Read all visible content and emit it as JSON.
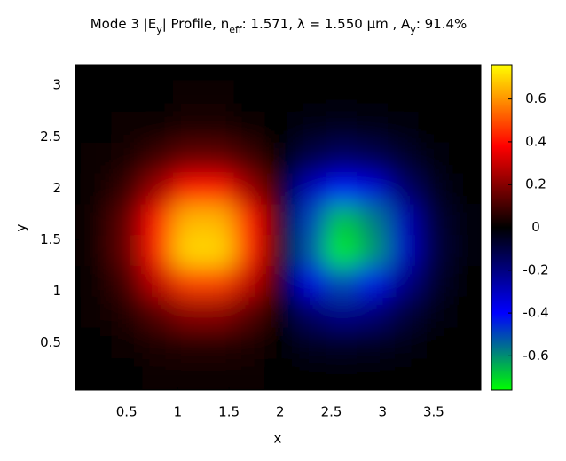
{
  "chart_data": {
    "type": "heatmap",
    "title": [
      {
        "text": "Mode 3 |E"
      },
      {
        "text": "y",
        "sub": true
      },
      {
        "text": "| Profile, n"
      },
      {
        "text": "eff",
        "sub": true
      },
      {
        "text": ": 1.571, λ = 1.550 µm , A"
      },
      {
        "text": "y",
        "sub": true
      },
      {
        "text": ": 91.4%"
      }
    ],
    "xlabel": "x",
    "ylabel": "y",
    "x": [
      0.2,
      0.5,
      0.8,
      1.1,
      1.4,
      1.7,
      2.0,
      2.3,
      2.6,
      2.9,
      3.2,
      3.5,
      3.8
    ],
    "y": [
      0.2,
      0.5,
      0.8,
      1.1,
      1.4,
      1.7,
      2.0,
      2.3,
      2.6,
      2.9
    ],
    "z": [
      [
        0,
        0,
        0.01,
        0.01,
        0.01,
        0.01,
        0,
        -0.01,
        -0.01,
        -0.01,
        0,
        0,
        0
      ],
      [
        0,
        0.01,
        0.04,
        0.06,
        0.06,
        0.04,
        0,
        -0.05,
        -0.06,
        -0.05,
        -0.03,
        -0.01,
        0
      ],
      [
        0.01,
        0.05,
        0.13,
        0.21,
        0.21,
        0.13,
        0,
        -0.16,
        -0.22,
        -0.19,
        -0.1,
        -0.03,
        -0.01
      ],
      [
        0.02,
        0.1,
        0.29,
        0.48,
        0.48,
        0.29,
        0,
        -0.36,
        -0.51,
        -0.43,
        -0.22,
        -0.07,
        -0.01
      ],
      [
        0.03,
        0.15,
        0.42,
        0.7,
        0.7,
        0.42,
        0,
        -0.52,
        -0.74,
        -0.62,
        -0.31,
        -0.1,
        -0.02
      ],
      [
        0.03,
        0.14,
        0.39,
        0.65,
        0.65,
        0.39,
        0,
        -0.49,
        -0.68,
        -0.58,
        -0.29,
        -0.09,
        -0.02
      ],
      [
        0.02,
        0.08,
        0.23,
        0.39,
        0.39,
        0.23,
        0,
        -0.29,
        -0.41,
        -0.34,
        -0.17,
        -0.05,
        -0.01
      ],
      [
        0.01,
        0.03,
        0.09,
        0.15,
        0.15,
        0.09,
        0,
        -0.11,
        -0.16,
        -0.13,
        -0.07,
        -0.02,
        0
      ],
      [
        0,
        0.01,
        0.02,
        0.04,
        0.04,
        0.02,
        0,
        -0.03,
        -0.04,
        -0.03,
        -0.02,
        0,
        0
      ],
      [
        0,
        0,
        0,
        0.01,
        0.01,
        0,
        0,
        0,
        -0.01,
        -0.01,
        0,
        0,
        0
      ]
    ],
    "xlim": [
      0,
      3.96
    ],
    "ylim": [
      0.04,
      3.2
    ],
    "xticks": [
      0.5,
      1,
      1.5,
      2,
      2.5,
      3,
      3.5
    ],
    "yticks": [
      0.5,
      1,
      1.5,
      2,
      2.5,
      3
    ],
    "clim": [
      -0.76,
      0.76
    ],
    "cticks": [
      -0.6,
      -0.4,
      -0.2,
      0,
      0.2,
      0.4,
      0.6
    ],
    "colorscale": [
      {
        "value": -0.76,
        "color": "#00ff00"
      },
      {
        "value": -0.4,
        "color": "#0000ff"
      },
      {
        "value": 0,
        "color": "#000000"
      },
      {
        "value": 0.38,
        "color": "#ff0000"
      },
      {
        "value": 0.76,
        "color": "#ffff00"
      }
    ]
  }
}
